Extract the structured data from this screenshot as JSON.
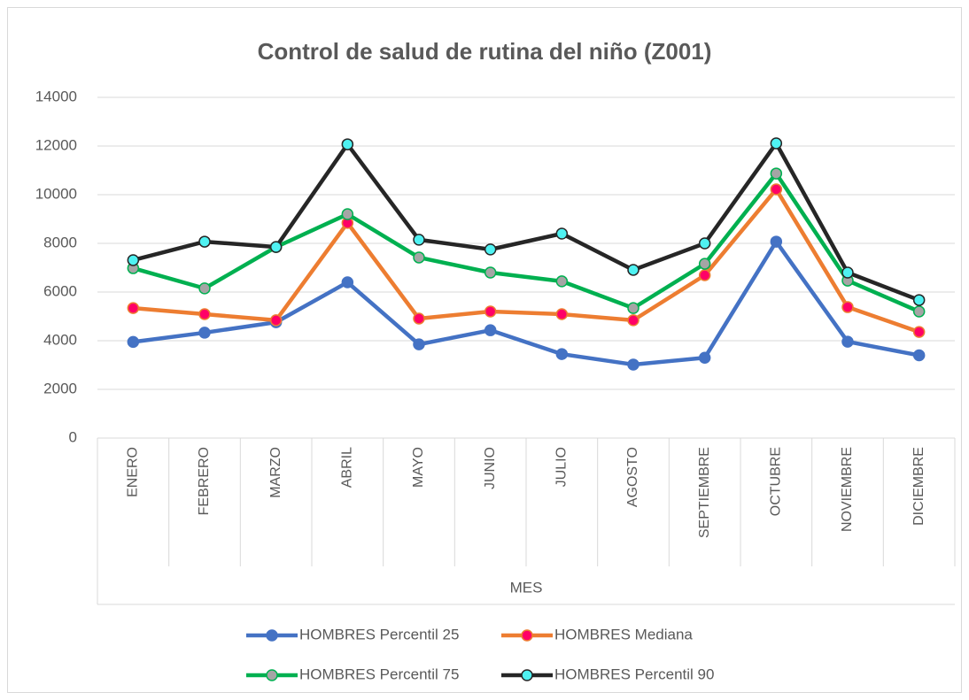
{
  "chart_data": {
    "type": "line",
    "title": "Control de salud de rutina del niño (Z001)",
    "x_label": "MES",
    "categories": [
      "ENERO",
      "FEBRERO",
      "MARZO",
      "ABRIL",
      "MAYO",
      "JUNIO",
      "JULIO",
      "AGOSTO",
      "SEPTIEMBRE",
      "OCTUBRE",
      "NOVIEMBRE",
      "DICIEMBRE"
    ],
    "series": [
      {
        "name": "HOMBRES Percentil 25",
        "color": "#4472c4",
        "marker_color": "#4472c4",
        "values": [
          3950,
          4330,
          4760,
          6400,
          3850,
          4430,
          3450,
          3020,
          3300,
          8070,
          3960,
          3400
        ]
      },
      {
        "name": "HOMBRES Mediana",
        "color": "#ed7d31",
        "marker_color": "#ff0066",
        "values": [
          5340,
          5090,
          4840,
          8840,
          4910,
          5200,
          5090,
          4840,
          6690,
          10220,
          5380,
          4360
        ]
      },
      {
        "name": "HOMBRES Percentil 75",
        "color": "#00b050",
        "marker_color": "#a5a5a5",
        "values": [
          6980,
          6150,
          7850,
          9200,
          7420,
          6800,
          6440,
          5340,
          7160,
          10870,
          6470,
          5200
        ]
      },
      {
        "name": "HOMBRES Percentil 90",
        "color": "#262626",
        "marker_color": "#4ff2f2",
        "values": [
          7310,
          8070,
          7850,
          12070,
          8150,
          7750,
          8400,
          6910,
          8000,
          12110,
          6800,
          5670
        ]
      }
    ],
    "ylim": [
      0,
      14000
    ],
    "yticks": [
      0,
      2000,
      4000,
      6000,
      8000,
      10000,
      12000,
      14000
    ],
    "grid": true,
    "legend": "bottom"
  }
}
